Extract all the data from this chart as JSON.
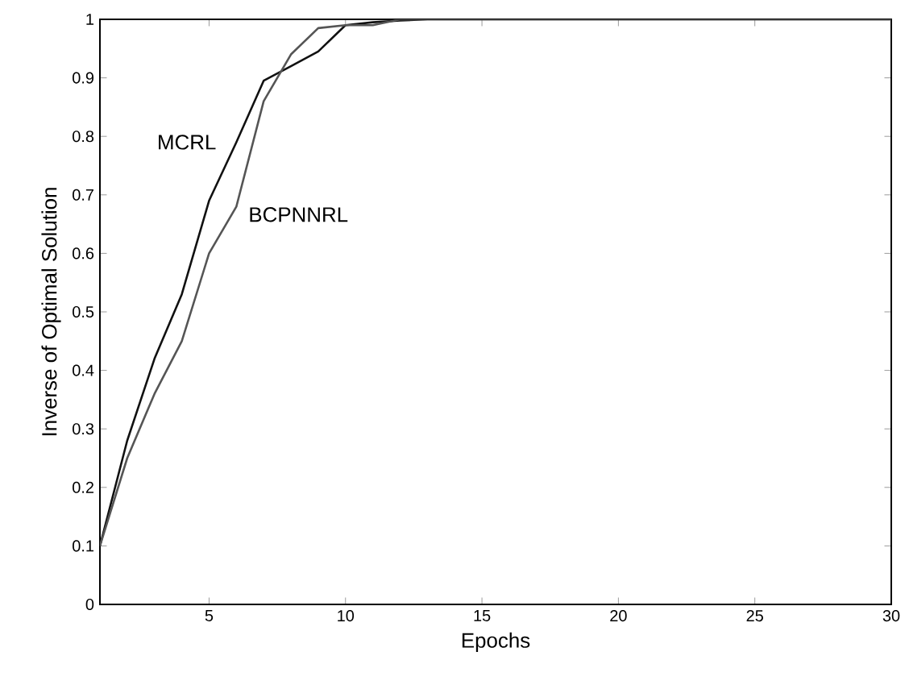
{
  "chart_data": {
    "type": "line",
    "xlabel": "Epochs",
    "ylabel": "Inverse of Optimal Solution",
    "x": [
      1,
      2,
      3,
      4,
      5,
      6,
      7,
      8,
      9,
      10,
      11,
      12,
      13,
      14,
      15,
      20,
      25,
      30
    ],
    "series": [
      {
        "name": "MCRL",
        "color": "#111111",
        "values": [
          0.1,
          0.28,
          0.42,
          0.53,
          0.69,
          0.79,
          0.895,
          0.92,
          0.945,
          0.99,
          0.995,
          0.998,
          1,
          1,
          1,
          1,
          1,
          1
        ]
      },
      {
        "name": "BCPNNRL",
        "color": "#555555",
        "values": [
          0.1,
          0.25,
          0.36,
          0.45,
          0.6,
          0.68,
          0.86,
          0.94,
          0.985,
          0.99,
          0.99,
          1,
          1,
          1,
          1,
          1,
          1,
          1
        ]
      }
    ],
    "xlim": [
      1,
      30
    ],
    "xticks": [
      5,
      10,
      15,
      20,
      25,
      30
    ],
    "ylim": [
      0,
      1
    ],
    "yticks": [
      0,
      0.1,
      0.2,
      0.3,
      0.4,
      0.5,
      0.6,
      0.7,
      0.8,
      0.9,
      1
    ],
    "grid": false,
    "marker": "none",
    "line_style": "solid"
  }
}
